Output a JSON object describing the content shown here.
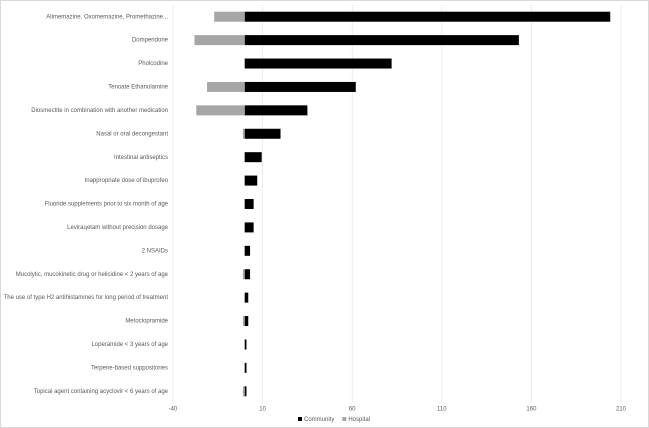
{
  "chart_data": {
    "type": "diverging-bar",
    "categories": [
      "Alimemazine, Oxomemazine, Promethazine...",
      "Domperidone",
      "Pholcodine",
      "Tenoate Ethanolamine",
      "Diosmectite in combination with another medication",
      "Nasal or oral decongestant",
      "Intestinal antiseptics",
      "Inappropriate dose of ibuprofen",
      "Fluoride supplements prior to six month of age",
      "Levirацetam without precision dosage",
      "2 NSAIDs",
      "Mucolytic, mucokinetic drug or helicidine < 2 years of age",
      "The use of type H2 antihistamines for long period of treatment",
      "Metoclopramide",
      "Loperamide < 3 years of age",
      "Terpene-based suppositories",
      "Topical agent containing acyclovir < 6 years of age"
    ],
    "series": [
      {
        "name": "Community",
        "color": "#000000",
        "values": [
          204,
          153,
          82,
          62,
          35,
          20,
          9.5,
          7,
          5,
          5,
          3,
          3,
          2,
          2,
          1,
          1,
          1
        ]
      },
      {
        "name": "Hospital",
        "color": "#a6a6a6",
        "values": [
          -17,
          -28,
          0,
          -21,
          -27,
          -1,
          0,
          0,
          0,
          0,
          0,
          -1,
          0,
          -1,
          0,
          0,
          -1
        ]
      }
    ],
    "xlim": [
      -40,
      210
    ],
    "xticks": [
      -40,
      10,
      60,
      110,
      160,
      210
    ],
    "grid": true,
    "legend": "bottom"
  }
}
